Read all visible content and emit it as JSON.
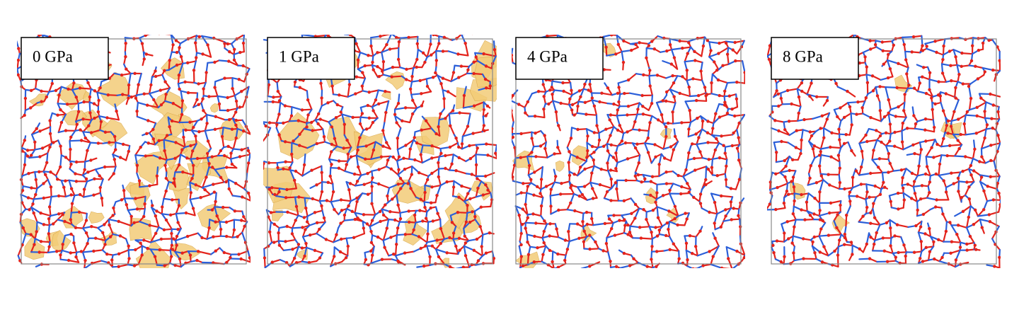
{
  "panels": [
    {
      "label": "0 GPa"
    },
    {
      "label": "1 GPa"
    },
    {
      "label": "4 GPa"
    },
    {
      "label": "8 GPa"
    }
  ]
}
